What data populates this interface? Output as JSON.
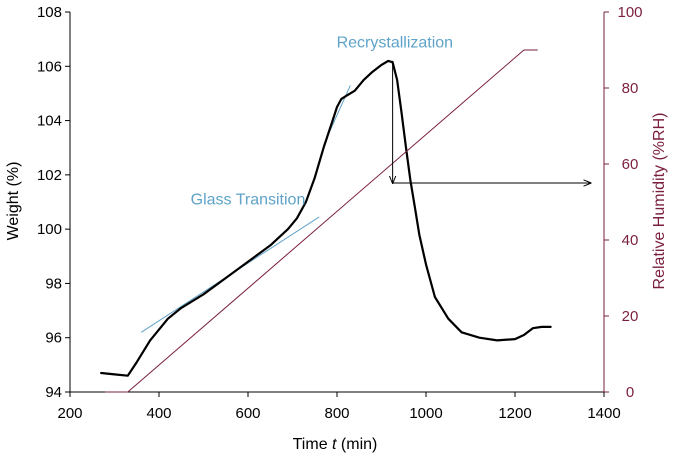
{
  "chart_data": {
    "type": "line",
    "xlabel_prefix": "Time ",
    "xlabel_var": "t",
    "xlabel_suffix": " (min)",
    "ylabel": "Weight (%)",
    "y2label": "Relative Humidity (%RH)",
    "xlim": [
      200,
      1400
    ],
    "ylim": [
      94,
      108
    ],
    "y2lim": [
      0,
      100
    ],
    "x_ticks": [
      200,
      400,
      600,
      800,
      1000,
      1200,
      1400
    ],
    "y_ticks": [
      94,
      96,
      98,
      100,
      102,
      104,
      106,
      108
    ],
    "y2_ticks": [
      0,
      20,
      40,
      60,
      80,
      100
    ],
    "grid": false,
    "colors": {
      "weight": "#000000",
      "rh": "#7a1f3d",
      "right_axis": "#7a1f3d",
      "annotation": "#5fa3c8",
      "arrow": "#000000"
    },
    "series": [
      {
        "name": "Weight",
        "axis": "left",
        "x": [
          270,
          300,
          330,
          350,
          380,
          420,
          450,
          500,
          550,
          600,
          650,
          690,
          710,
          730,
          750,
          770,
          780,
          790,
          800,
          810,
          820,
          840,
          860,
          880,
          900,
          915,
          925,
          935,
          945,
          955,
          965,
          975,
          985,
          1000,
          1020,
          1050,
          1080,
          1120,
          1160,
          1200,
          1220,
          1240,
          1260,
          1280
        ],
        "y": [
          94.7,
          94.65,
          94.6,
          95.1,
          95.9,
          96.7,
          97.1,
          97.6,
          98.2,
          98.8,
          99.4,
          100.0,
          100.4,
          101.0,
          101.9,
          103.0,
          103.5,
          104.0,
          104.5,
          104.8,
          104.9,
          105.1,
          105.5,
          105.8,
          106.05,
          106.2,
          106.15,
          105.5,
          104.3,
          103.0,
          101.8,
          100.8,
          99.8,
          98.7,
          97.5,
          96.7,
          96.2,
          96.0,
          95.9,
          95.95,
          96.1,
          96.35,
          96.4,
          96.4
        ]
      },
      {
        "name": "RH",
        "axis": "right",
        "x": [
          280,
          330,
          1220,
          1250
        ],
        "y": [
          0,
          0,
          90,
          90
        ]
      }
    ],
    "tangent_lines": [
      {
        "x": [
          360,
          760
        ],
        "y": [
          96.2,
          100.45
        ]
      },
      {
        "x": [
          770,
          830
        ],
        "y": [
          103.1,
          105.3
        ]
      }
    ],
    "annotations": [
      {
        "text": "Glass Transition",
        "x": 600,
        "y": 100.9
      },
      {
        "text": "Recrystallization",
        "x": 930,
        "y": 106.7
      }
    ],
    "arrows": [
      {
        "from": [
          925,
          106.2
        ],
        "to": [
          925,
          101.7
        ]
      },
      {
        "from": [
          925,
          101.7
        ],
        "to": [
          1370,
          101.7
        ]
      }
    ]
  }
}
